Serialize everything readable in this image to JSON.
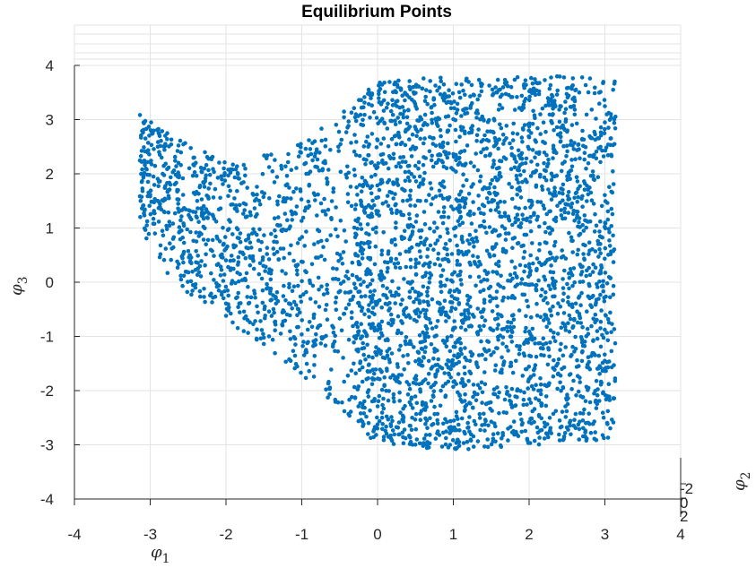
{
  "chart_data": {
    "type": "scatter",
    "title": "Equilibrium Points",
    "xlabel": {
      "base": "φ",
      "sub": "1"
    },
    "ylabel": {
      "base": "φ",
      "sub": "3"
    },
    "zlabel": {
      "base": "φ",
      "sub": "2"
    },
    "xlim": [
      -4,
      4
    ],
    "ylim": [
      -4,
      4
    ],
    "x_ticks": [
      "-4",
      "-3",
      "-2",
      "-1",
      "0",
      "1",
      "2",
      "3",
      "4"
    ],
    "y_ticks": [
      "-4",
      "-3",
      "-2",
      "-1",
      "0",
      "1",
      "2",
      "3",
      "4"
    ],
    "z_ticks": [
      "-2",
      "0",
      "2"
    ],
    "grid": true,
    "marker_color": "#0072BD",
    "view": "3-D scatter seen almost along the φ2 axis",
    "point_cloud_description": {
      "x_range": [
        -3.14,
        3.14
      ],
      "dense_region_x": [
        -0.3,
        3.14
      ],
      "upper_envelope": [
        [
          -3.1,
          3.1
        ],
        [
          -2.8,
          2.8
        ],
        [
          -2.0,
          2.2
        ],
        [
          -1.0,
          2.6
        ],
        [
          -0.5,
          3.1
        ],
        [
          0.0,
          3.7
        ],
        [
          0.8,
          3.8
        ],
        [
          3.14,
          3.8
        ]
      ],
      "lower_envelope": [
        [
          -3.1,
          0.9
        ],
        [
          -2.7,
          0.0
        ],
        [
          -2.0,
          -0.7
        ],
        [
          -1.0,
          -1.7
        ],
        [
          0.0,
          -3.0
        ],
        [
          1.0,
          -3.1
        ],
        [
          3.14,
          -2.9
        ]
      ]
    }
  }
}
